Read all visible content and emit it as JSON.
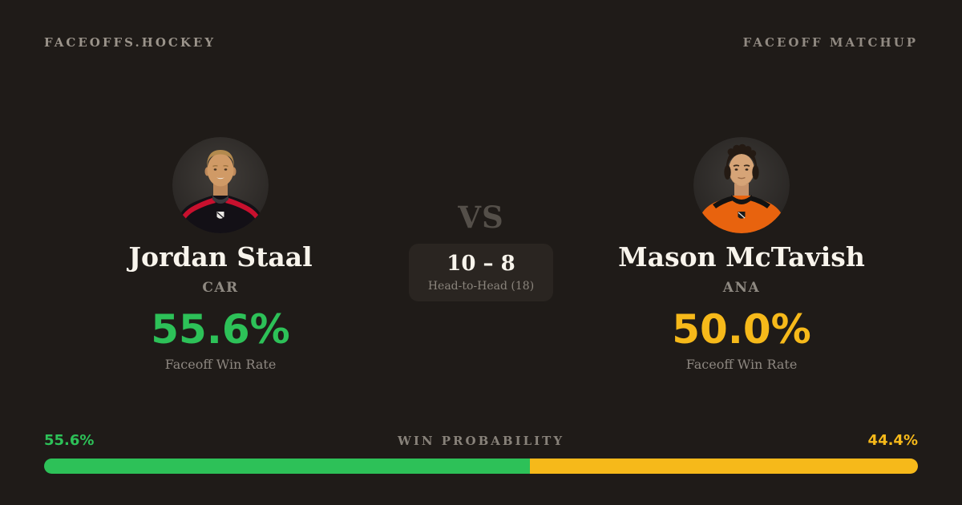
{
  "header": {
    "brand": "FACEOFFS.HOCKEY",
    "page_label": "FACEOFF MATCHUP"
  },
  "matchup": {
    "vs_label": "VS",
    "head_to_head": {
      "score": "10 – 8",
      "label": "Head-to-Head (18)"
    }
  },
  "players": {
    "left": {
      "name": "Jordan Staal",
      "team": "CAR",
      "win_rate": "55.6%",
      "win_rate_label": "Faceoff Win Rate",
      "accent_color": "#2dc158",
      "photo": "jordan-staal-headshot-black-red-jersey"
    },
    "right": {
      "name": "Mason McTavish",
      "team": "ANA",
      "win_rate": "50.0%",
      "win_rate_label": "Faceoff Win Rate",
      "accent_color": "#f6b91a",
      "photo": "mason-mctavish-headshot-orange-jersey"
    }
  },
  "win_probability": {
    "label": "WIN PROBABILITY",
    "left_pct": "55.6%",
    "right_pct": "44.4%",
    "left_value": 55.6,
    "right_value": 44.4,
    "left_color": "#2dc158",
    "right_color": "#f6b91a"
  },
  "theme": {
    "background": "#1f1b18",
    "panel": "#2a2521",
    "text_primary": "#f8f4ec",
    "text_muted": "#8d8780"
  }
}
